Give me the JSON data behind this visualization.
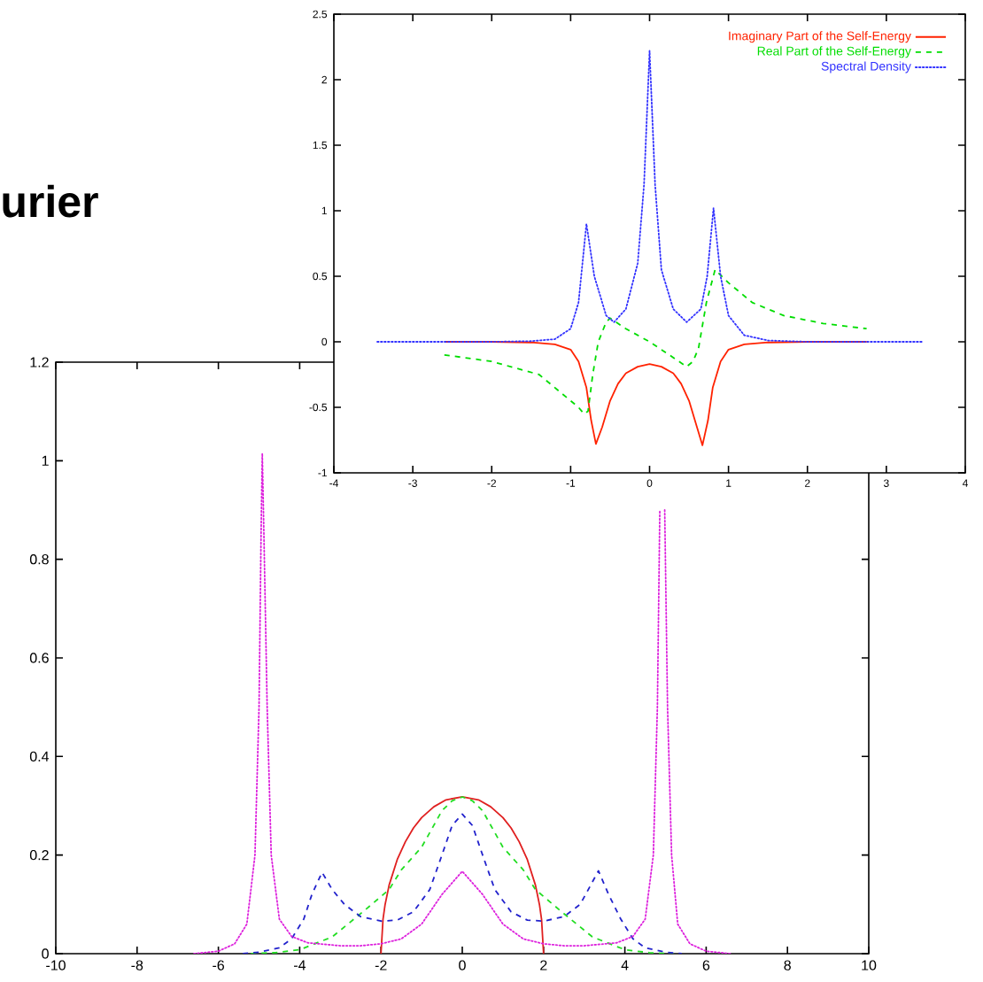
{
  "chart_data": [
    {
      "type": "line",
      "annotations": [
        "urier"
      ],
      "xlim": [
        -10,
        10
      ],
      "ylim": [
        0,
        1.2
      ],
      "xticks": [
        -10,
        -8,
        -6,
        -4,
        -2,
        0,
        2,
        4,
        6,
        8,
        10
      ],
      "yticks": [
        0,
        0.2,
        0.4,
        0.6,
        0.8,
        1,
        1.2
      ],
      "series": [
        {
          "color": "#e02020",
          "line_style": "solid",
          "x": [
            -2,
            -1.95,
            -1.9,
            -1.8,
            -1.6,
            -1.4,
            -1.2,
            -1,
            -0.7,
            -0.4,
            0,
            0.4,
            0.7,
            1,
            1.2,
            1.4,
            1.6,
            1.8,
            1.9,
            1.95,
            2
          ],
          "values": [
            0,
            0.07,
            0.099,
            0.139,
            0.191,
            0.227,
            0.255,
            0.276,
            0.298,
            0.312,
            0.318,
            0.312,
            0.298,
            0.276,
            0.255,
            0.227,
            0.191,
            0.139,
            0.099,
            0.07,
            0
          ]
        },
        {
          "color": "#22dd22",
          "line_style": "dashed",
          "x": [
            -5.2,
            -4.6,
            -4,
            -3.2,
            -2.4,
            -1.8,
            -1.5,
            -1,
            -0.5,
            -0.25,
            0,
            0.25,
            0.5,
            1,
            1.5,
            1.8,
            2.4,
            3.2,
            4,
            4.6,
            5.2
          ],
          "values": [
            0,
            0.002,
            0.008,
            0.034,
            0.088,
            0.13,
            0.17,
            0.216,
            0.29,
            0.31,
            0.318,
            0.31,
            0.29,
            0.216,
            0.17,
            0.13,
            0.088,
            0.034,
            0.008,
            0.002,
            0
          ]
        },
        {
          "color": "#2222cc",
          "line_style": "dashed",
          "x": [
            -5.4,
            -5,
            -4.5,
            -4.2,
            -3.9,
            -3.7,
            -3.45,
            -3.2,
            -2.9,
            -2.5,
            -2,
            -1.6,
            -1.2,
            -0.8,
            -0.5,
            -0.25,
            0,
            0.25,
            0.5,
            0.8,
            1.2,
            1.6,
            2,
            2.5,
            2.9,
            3.1,
            3.35,
            3.6,
            3.9,
            4.2,
            4.5,
            5,
            5.4
          ],
          "values": [
            0,
            0.003,
            0.012,
            0.03,
            0.07,
            0.12,
            0.165,
            0.13,
            0.1,
            0.075,
            0.066,
            0.068,
            0.085,
            0.13,
            0.2,
            0.26,
            0.283,
            0.26,
            0.2,
            0.13,
            0.085,
            0.068,
            0.066,
            0.075,
            0.1,
            0.13,
            0.168,
            0.12,
            0.07,
            0.03,
            0.012,
            0.003,
            0
          ]
        },
        {
          "color": "#dd22dd",
          "line_style": "dotted",
          "x": [
            -6.6,
            -6,
            -5.6,
            -5.3,
            -5.1,
            -5,
            -4.95,
            -4.92,
            -4.88,
            -4.8,
            -4.7,
            -4.5,
            -4.2,
            -3.8,
            -3,
            -2.5,
            -2,
            -1.5,
            -1,
            -0.5,
            0,
            0.5,
            1,
            1.5,
            2,
            2.5,
            3,
            3.8,
            4.2,
            4.5,
            4.7,
            4.8,
            4.86,
            4.92,
            4.98,
            5.05,
            5.15,
            5.3,
            5.6,
            6,
            6.6
          ],
          "values": [
            0,
            0.005,
            0.02,
            0.06,
            0.2,
            0.5,
            0.85,
            1.015,
            0.85,
            0.5,
            0.2,
            0.07,
            0.035,
            0.022,
            0.016,
            0.016,
            0.02,
            0.03,
            0.06,
            0.12,
            0.167,
            0.12,
            0.06,
            0.03,
            0.02,
            0.016,
            0.016,
            0.022,
            0.035,
            0.07,
            0.2,
            0.5,
            0.9,
            null,
            0.9,
            0.5,
            0.2,
            0.06,
            0.02,
            0.005,
            0
          ]
        }
      ]
    },
    {
      "type": "line",
      "legend": "top right",
      "xlim": [
        -4,
        4
      ],
      "ylim": [
        -1,
        2.5
      ],
      "xticks": [
        -4,
        -3,
        -2,
        -1,
        0,
        1,
        2,
        3,
        4
      ],
      "yticks": [
        -1,
        -0.5,
        0,
        0.5,
        1,
        1.5,
        2,
        2.5
      ],
      "series": [
        {
          "name": "Imaginary Part of the Self-Energy",
          "color": "#ff2200",
          "line_style": "solid",
          "x": [
            -2.6,
            -2,
            -1.5,
            -1.2,
            -1,
            -0.9,
            -0.8,
            -0.74,
            -0.68,
            -0.6,
            -0.5,
            -0.4,
            -0.3,
            -0.15,
            0,
            0.15,
            0.3,
            0.4,
            0.5,
            0.6,
            0.67,
            0.74,
            0.8,
            0.9,
            1,
            1.2,
            1.5,
            2,
            2.75
          ],
          "values": [
            0,
            0,
            -0.005,
            -0.02,
            -0.06,
            -0.15,
            -0.35,
            -0.6,
            -0.78,
            -0.65,
            -0.45,
            -0.32,
            -0.24,
            -0.19,
            -0.17,
            -0.19,
            -0.24,
            -0.32,
            -0.45,
            -0.65,
            -0.79,
            -0.6,
            -0.35,
            -0.15,
            -0.06,
            -0.02,
            -0.005,
            0,
            0
          ]
        },
        {
          "name": "Real Part of the Self-Energy",
          "color": "#00dd00",
          "line_style": "dashed",
          "x": [
            -2.6,
            -2,
            -1.4,
            -1.1,
            -0.9,
            -0.83,
            -0.78,
            -0.72,
            -0.65,
            -0.55,
            -0.5,
            -0.3,
            0,
            0.25,
            0.47,
            0.55,
            0.62,
            0.72,
            0.83,
            1,
            1.3,
            1.7,
            2.2,
            2.75
          ],
          "values": [
            -0.1,
            -0.15,
            -0.25,
            -0.4,
            -0.5,
            -0.55,
            -0.53,
            -0.25,
            0,
            0.15,
            0.18,
            0.1,
            0,
            -0.1,
            -0.19,
            -0.15,
            -0.05,
            0.3,
            0.55,
            0.45,
            0.3,
            0.2,
            0.14,
            0.1
          ]
        },
        {
          "name": "Spectral Density",
          "color": "#3333ff",
          "line_style": "dotted",
          "x": [
            -3.45,
            -2,
            -1.5,
            -1.2,
            -1,
            -0.9,
            -0.8,
            -0.7,
            -0.55,
            -0.45,
            -0.3,
            -0.15,
            -0.07,
            0,
            0.07,
            0.15,
            0.3,
            0.47,
            0.65,
            0.73,
            0.81,
            0.9,
            1,
            1.2,
            1.5,
            2,
            3.45
          ],
          "values": [
            0,
            0,
            0.005,
            0.02,
            0.1,
            0.3,
            0.9,
            0.5,
            0.2,
            0.15,
            0.25,
            0.6,
            1.2,
            2.22,
            1.2,
            0.55,
            0.25,
            0.15,
            0.25,
            0.5,
            1.02,
            0.5,
            0.2,
            0.05,
            0.01,
            0,
            0
          ]
        }
      ]
    }
  ]
}
